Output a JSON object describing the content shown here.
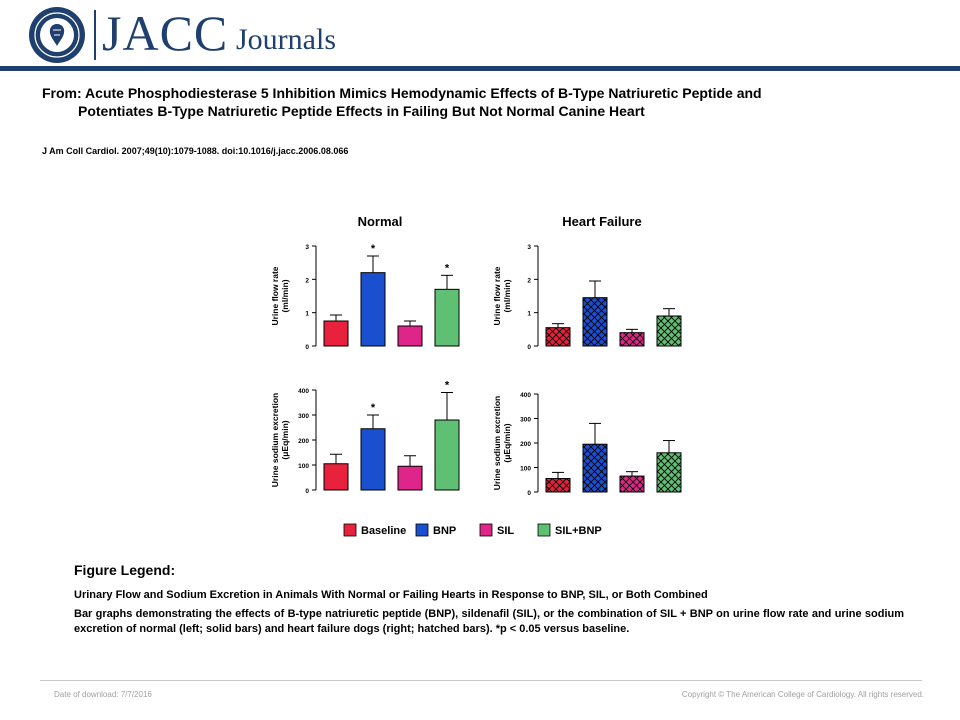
{
  "brand": {
    "name": "JACC",
    "journals": "Journals"
  },
  "article": {
    "from_label": "From: ",
    "title_line1": "Acute Phosphodiesterase 5 Inhibition Mimics Hemodynamic Effects of B-Type Natriuretic Peptide and",
    "title_line2": "Potentiates B-Type Natriuretic Peptide Effects in Failing But Not Normal Canine Heart",
    "citation": "J Am Coll Cardiol. 2007;49(10):1079-1088. doi:10.1016/j.jacc.2006.08.066"
  },
  "chart_data": [
    {
      "type": "bar",
      "title": "Normal",
      "ylabel": "Urine flow rate (ml/min)",
      "categories": [
        "Baseline",
        "BNP",
        "SIL",
        "SIL+BNP"
      ],
      "values": [
        0.75,
        2.2,
        0.6,
        1.7
      ],
      "errors": [
        0.18,
        0.5,
        0.15,
        0.42
      ],
      "significant": [
        false,
        true,
        false,
        true
      ],
      "ylim": [
        0,
        3
      ],
      "yticks": [
        "0",
        "1",
        "2",
        "3"
      ],
      "hatched": false
    },
    {
      "type": "bar",
      "title": "Heart Failure",
      "ylabel": "Urine flow rate (ml/min)",
      "categories": [
        "Baseline",
        "BNP",
        "SIL",
        "SIL+BNP"
      ],
      "values": [
        0.55,
        1.45,
        0.4,
        0.9
      ],
      "errors": [
        0.12,
        0.5,
        0.1,
        0.22
      ],
      "significant": [
        false,
        false,
        false,
        false
      ],
      "ylim": [
        0,
        3
      ],
      "yticks": [
        "0",
        "1",
        "2",
        "3"
      ],
      "hatched": true
    },
    {
      "type": "bar",
      "title": "",
      "ylabel": "Urine sodium excretion (μEq/min)",
      "categories": [
        "Baseline",
        "BNP",
        "SIL",
        "SIL+BNP"
      ],
      "values": [
        105,
        245,
        95,
        280
      ],
      "errors": [
        38,
        55,
        42,
        110
      ],
      "significant": [
        false,
        true,
        false,
        true
      ],
      "ylim": [
        0,
        400
      ],
      "yticks": [
        "0",
        "100",
        "200",
        "300",
        "400"
      ],
      "hatched": false
    },
    {
      "type": "bar",
      "title": "",
      "ylabel": "Urine sodium excretion (μEq/min)",
      "categories": [
        "Baseline",
        "BNP",
        "SIL",
        "SIL+BNP"
      ],
      "values": [
        55,
        195,
        65,
        160
      ],
      "errors": [
        25,
        85,
        18,
        50
      ],
      "significant": [
        false,
        false,
        false,
        false
      ],
      "ylim": [
        0,
        400
      ],
      "yticks": [
        "0",
        "100",
        "200",
        "300",
        "400"
      ],
      "hatched": true
    }
  ],
  "chart_legend": [
    {
      "label": "Baseline",
      "color": "#e8213c"
    },
    {
      "label": "BNP",
      "color": "#1a4fd0"
    },
    {
      "label": "SIL",
      "color": "#e0258a"
    },
    {
      "label": "SIL+BNP",
      "color": "#5fbf72"
    }
  ],
  "figure_legend": {
    "heading": "Figure Legend:",
    "subtitle": "Urinary Flow and Sodium Excretion in Animals With Normal or Failing Hearts in Response to BNP, SIL, or Both Combined",
    "body": "Bar graphs demonstrating the effects of B-type natriuretic peptide (BNP), sildenafil (SIL), or the combination of SIL + BNP on urine flow rate and urine sodium excretion of normal (left; solid bars) and heart failure dogs (right; hatched bars). *p < 0.05 versus baseline."
  },
  "footer": {
    "date": "Date of download:  7/7/2016",
    "copyright": "Copyright © The American College of Cardiology. All rights reserved."
  }
}
